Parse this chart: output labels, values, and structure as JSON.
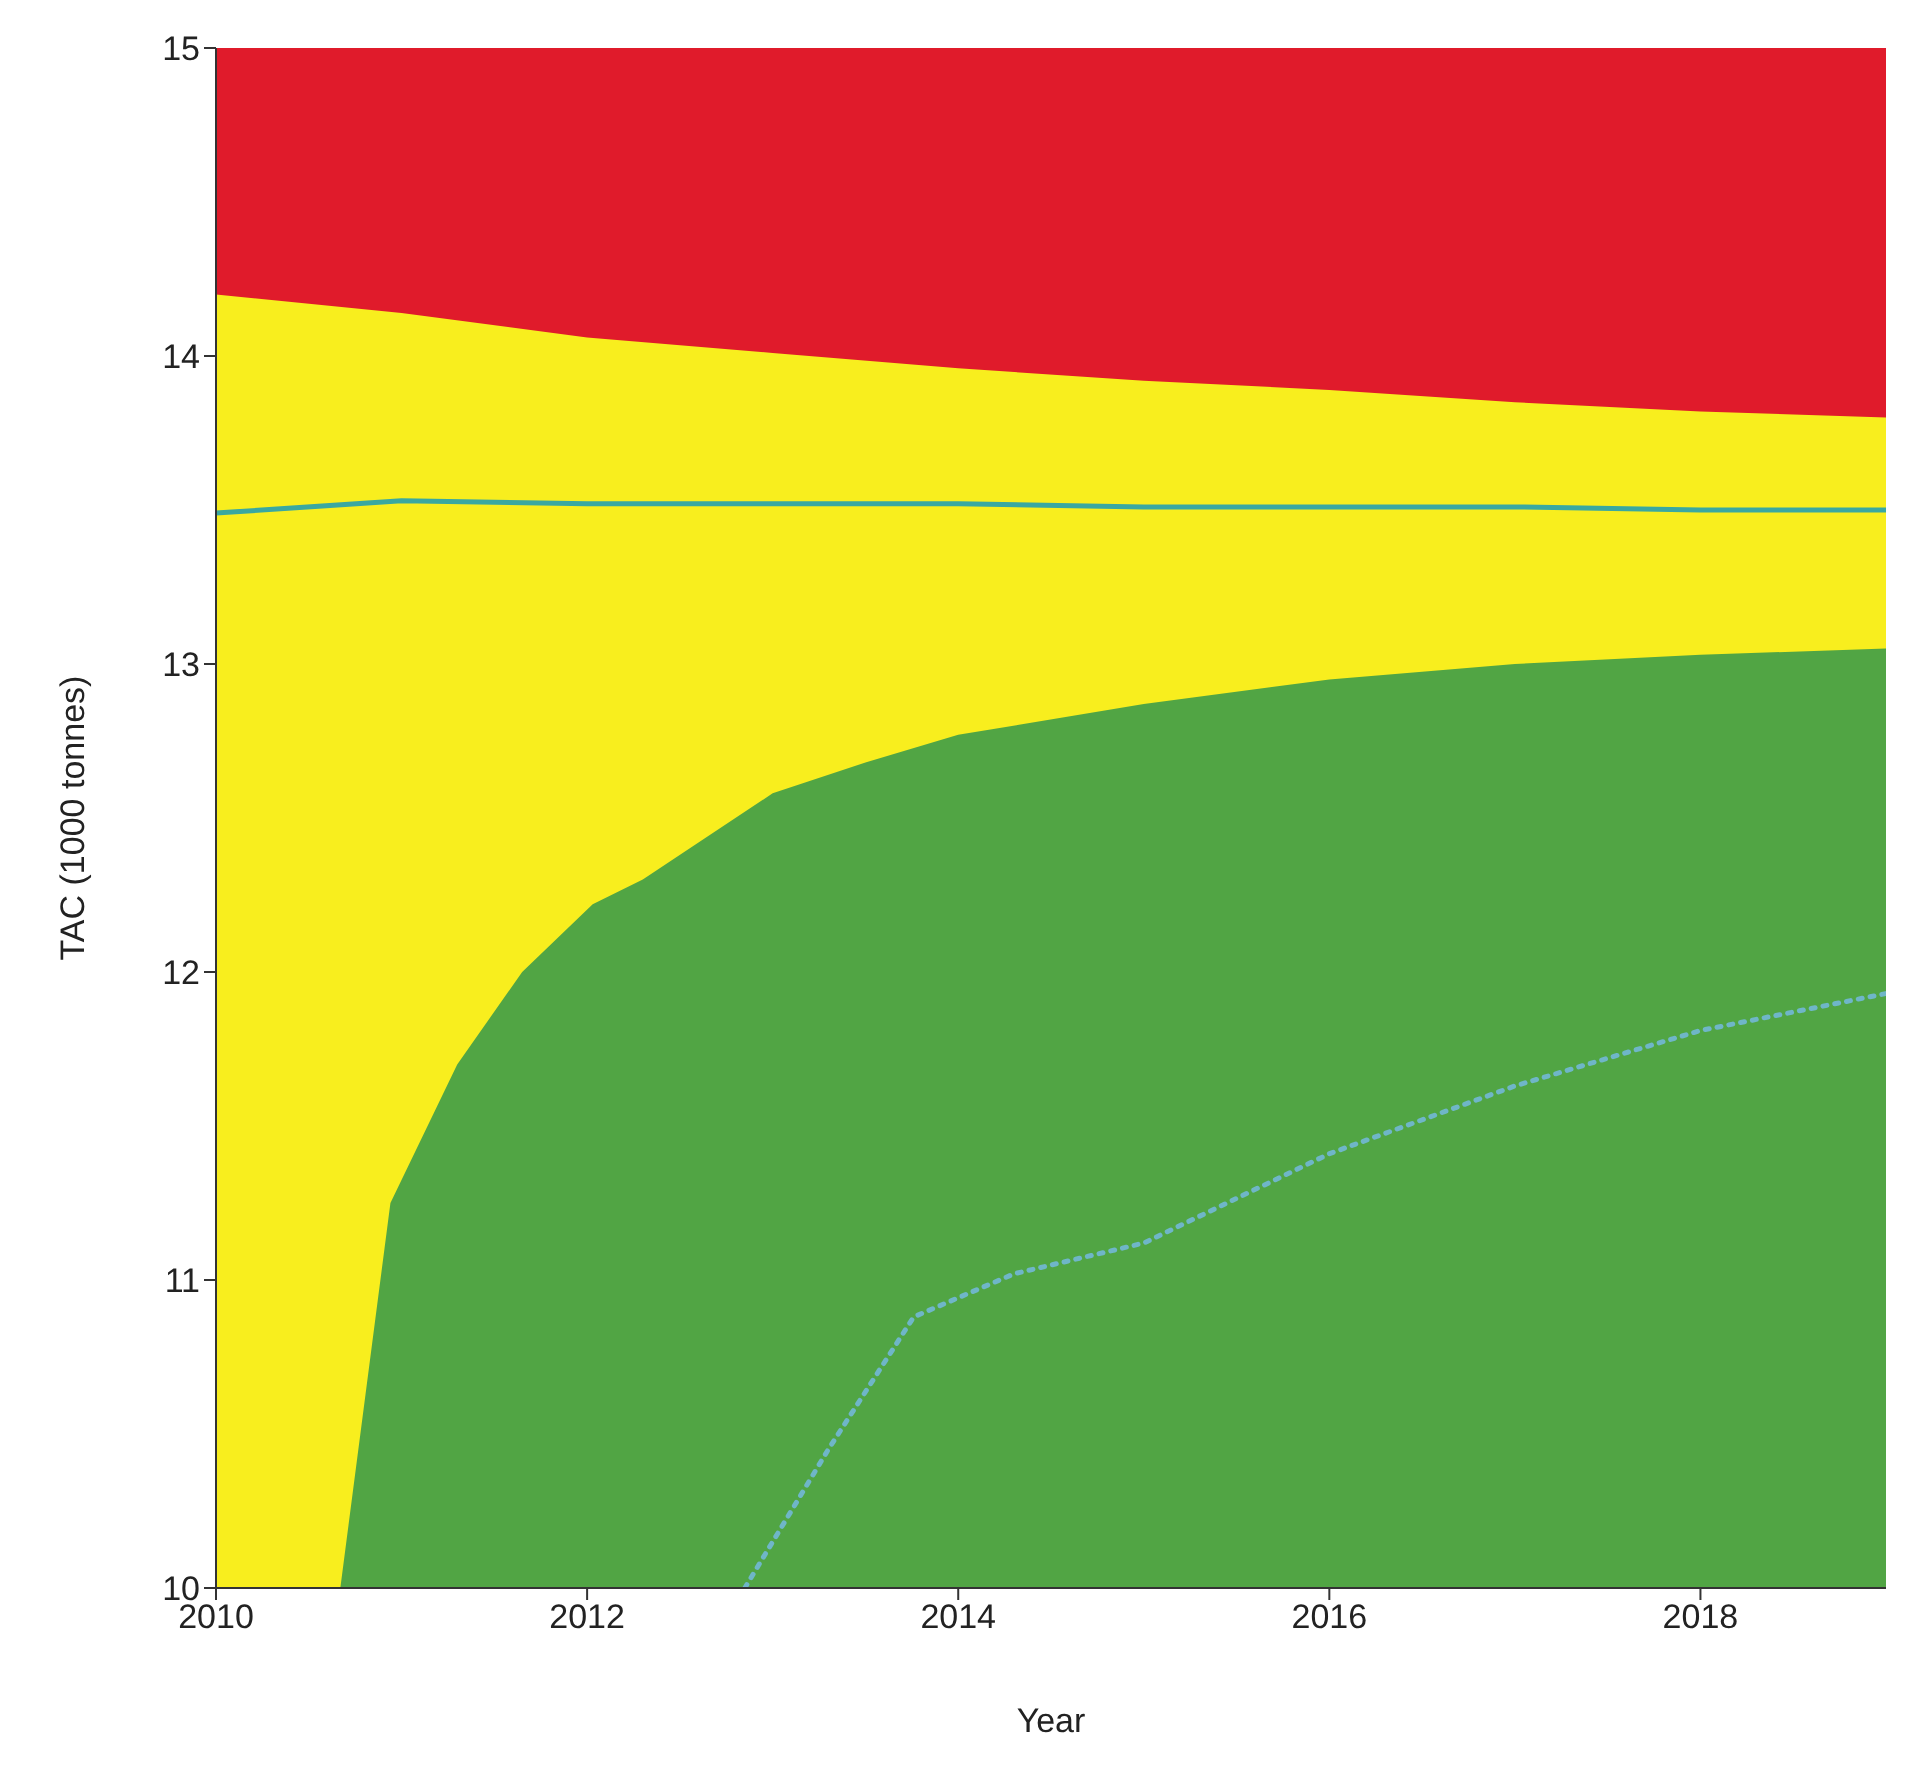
{
  "chart_data": {
    "type": "area",
    "xlabel": "Year",
    "ylabel": "TAC (1000 tonnes)",
    "xlim": [
      2010,
      2019
    ],
    "xticks": [
      2010,
      2012,
      2014,
      2016,
      2018
    ],
    "ylim": [
      10,
      15
    ],
    "yticks": [
      10,
      11,
      12,
      13,
      14,
      15
    ],
    "grid": false,
    "legend": false,
    "marker": "none",
    "x": [
      2010,
      2011,
      2012,
      2013,
      2014,
      2015,
      2016,
      2017,
      2018,
      2019
    ],
    "series": [
      {
        "color": "#e01b2b",
        "values": [
          15,
          15,
          15,
          15,
          15,
          15,
          15,
          15,
          15,
          15
        ]
      },
      {
        "color": "#f8ee1e",
        "values": [
          14.2,
          14.14,
          14.06,
          14.01,
          13.96,
          13.92,
          13.89,
          13.85,
          13.82,
          13.8
        ]
      },
      {
        "color": "#51a544",
        "x": [
          2010.67,
          2010.94,
          2011.3,
          2011.65,
          2012.03,
          2012.3,
          2013,
          2013.5,
          2014,
          2015,
          2016,
          2017,
          2018,
          2019
        ],
        "values": [
          10,
          11.25,
          11.7,
          12,
          12.22,
          12.3,
          12.58,
          12.68,
          12.77,
          12.87,
          12.95,
          13,
          13.03,
          13.05
        ]
      },
      {
        "type": "line",
        "color": "#3aa8a0",
        "line_style": "solid",
        "values": [
          13.49,
          13.53,
          13.52,
          13.52,
          13.52,
          13.51,
          13.51,
          13.51,
          13.5,
          13.5
        ]
      },
      {
        "type": "line",
        "color": "#6fb6c8",
        "line_style": "dotted",
        "x": [
          2012.85,
          2013.3,
          2013.76,
          2014.3,
          2015,
          2016,
          2017,
          2018,
          2019
        ],
        "values": [
          10,
          10.45,
          10.88,
          11.02,
          11.12,
          11.41,
          11.63,
          11.81,
          11.93
        ]
      }
    ]
  }
}
